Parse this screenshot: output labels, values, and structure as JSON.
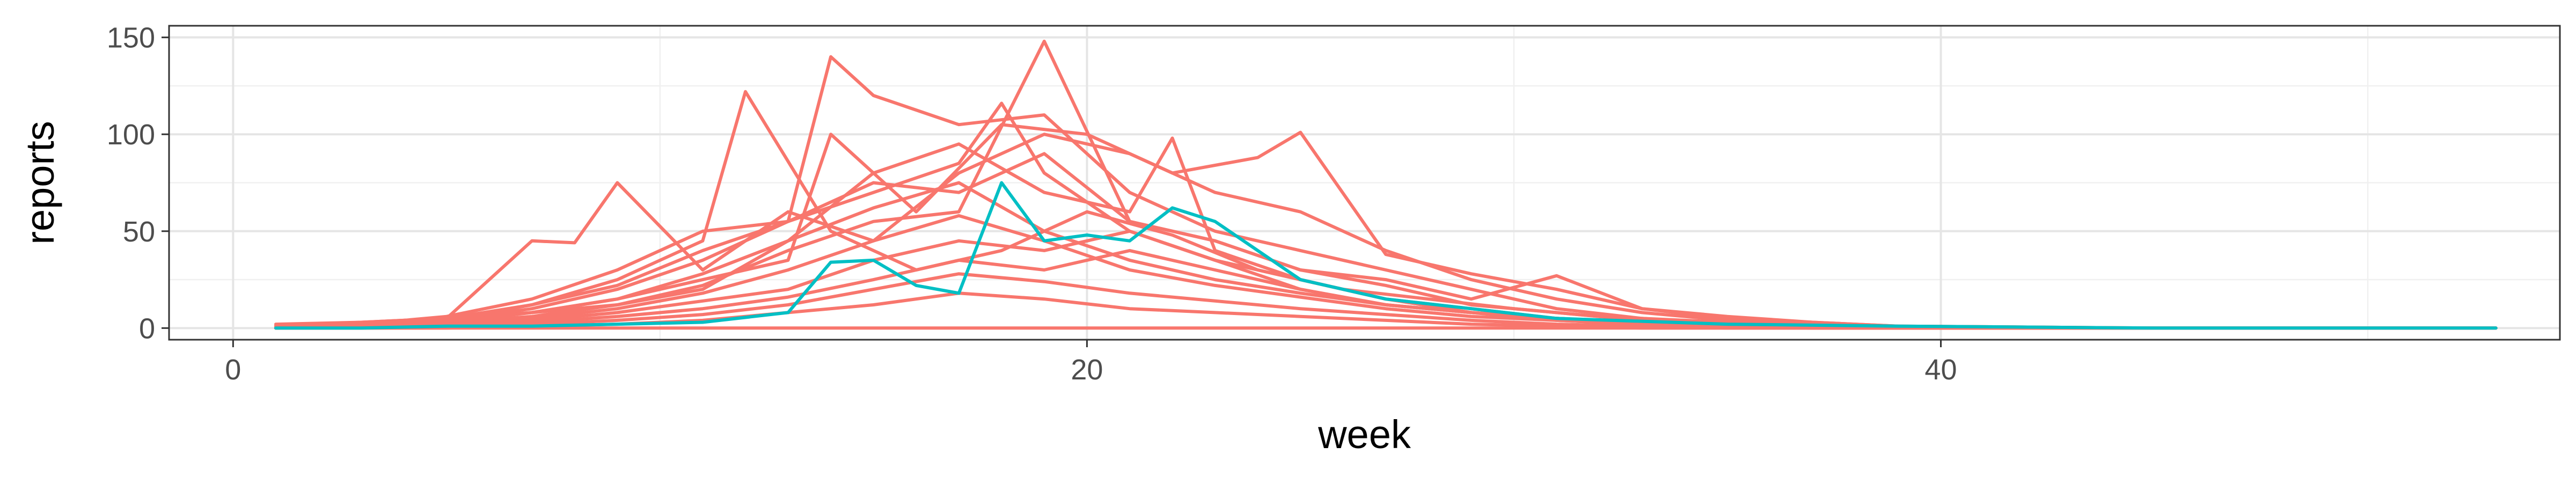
{
  "chart_data": {
    "type": "line",
    "title": "",
    "xlabel": "week",
    "ylabel": "reports",
    "xlim": [
      -1.5,
      54.5
    ],
    "ylim": [
      -6,
      156
    ],
    "x_ticks": [
      0,
      20,
      40
    ],
    "y_ticks": [
      0,
      50,
      100,
      150
    ],
    "x_minor_ticks": [
      10,
      30,
      50
    ],
    "y_minor_ticks": [
      25,
      75,
      125
    ],
    "grid": true,
    "legend": "none",
    "colors": {
      "salmon": "#F8766D",
      "teal": "#00BFC4"
    },
    "series": [
      {
        "color": "#F8766D",
        "x": [
          1,
          3,
          5,
          7,
          9,
          11,
          13,
          15,
          17,
          19,
          21,
          23,
          25,
          27,
          29,
          31,
          33,
          35,
          37,
          39,
          41,
          45,
          50,
          53
        ],
        "y": [
          2,
          3,
          5,
          8,
          12,
          22,
          40,
          55,
          60,
          148,
          55,
          45,
          30,
          22,
          12,
          8,
          4,
          2,
          1,
          0,
          0,
          0,
          0,
          0
        ]
      },
      {
        "color": "#F8766D",
        "x": [
          1,
          3,
          5,
          7,
          9,
          11,
          12,
          14,
          16,
          18,
          20,
          22,
          24,
          26,
          28,
          30,
          32,
          34,
          36,
          38,
          40,
          45,
          50,
          53
        ],
        "y": [
          1,
          2,
          4,
          12,
          25,
          45,
          122,
          50,
          30,
          40,
          60,
          48,
          30,
          20,
          15,
          10,
          6,
          4,
          2,
          1,
          0,
          0,
          0,
          0
        ]
      },
      {
        "color": "#F8766D",
        "x": [
          1,
          3,
          5,
          7,
          9,
          11,
          13,
          14,
          15,
          17,
          19,
          21,
          23,
          25,
          27,
          29,
          31,
          33,
          35,
          37,
          39,
          45,
          50,
          53
        ],
        "y": [
          1,
          2,
          6,
          15,
          30,
          50,
          55,
          140,
          120,
          105,
          110,
          70,
          50,
          40,
          30,
          20,
          10,
          5,
          2,
          1,
          0,
          0,
          0,
          0
        ]
      },
      {
        "color": "#F8766D",
        "x": [
          1,
          3,
          5,
          7,
          8,
          9,
          11,
          13,
          15,
          17,
          19,
          21,
          23,
          25,
          27,
          29,
          31,
          33,
          35,
          37,
          39,
          45,
          50,
          53
        ],
        "y": [
          1,
          3,
          5,
          45,
          44,
          75,
          30,
          60,
          45,
          80,
          100,
          90,
          70,
          60,
          40,
          25,
          15,
          8,
          4,
          2,
          1,
          0,
          0,
          0
        ]
      },
      {
        "color": "#F8766D",
        "x": [
          1,
          3,
          5,
          7,
          9,
          11,
          13,
          14,
          16,
          18,
          20,
          22,
          24,
          25,
          27,
          29,
          31,
          33,
          35,
          37,
          39,
          45,
          50,
          53
        ],
        "y": [
          1,
          2,
          4,
          8,
          15,
          25,
          35,
          100,
          60,
          105,
          100,
          80,
          88,
          101,
          38,
          28,
          20,
          10,
          6,
          3,
          1,
          0,
          0,
          0
        ]
      },
      {
        "color": "#F8766D",
        "x": [
          1,
          3,
          5,
          7,
          9,
          11,
          13,
          15,
          17,
          19,
          21,
          22,
          23,
          25,
          27,
          29,
          31,
          33,
          35,
          37,
          39,
          45,
          50,
          53
        ],
        "y": [
          0,
          1,
          3,
          6,
          12,
          20,
          45,
          80,
          95,
          70,
          60,
          98,
          40,
          25,
          15,
          10,
          5,
          3,
          2,
          1,
          0,
          0,
          0,
          0
        ]
      },
      {
        "color": "#F8766D",
        "x": [
          1,
          3,
          5,
          7,
          9,
          11,
          13,
          15,
          17,
          18,
          19,
          21,
          23,
          25,
          27,
          29,
          31,
          33,
          35,
          37,
          39,
          45,
          50,
          53
        ],
        "y": [
          0,
          2,
          4,
          10,
          20,
          35,
          55,
          70,
          85,
          116,
          80,
          50,
          35,
          20,
          12,
          8,
          5,
          3,
          1,
          0,
          0,
          0,
          0,
          0
        ]
      },
      {
        "color": "#F8766D",
        "x": [
          1,
          3,
          5,
          7,
          9,
          11,
          13,
          15,
          17,
          19,
          21,
          23,
          25,
          27,
          29,
          31,
          33,
          35,
          37,
          39,
          41,
          45,
          50,
          53
        ],
        "y": [
          1,
          2,
          5,
          12,
          22,
          40,
          55,
          75,
          70,
          90,
          55,
          45,
          30,
          25,
          15,
          27,
          10,
          5,
          3,
          1,
          0,
          0,
          0,
          0
        ]
      },
      {
        "color": "#F8766D",
        "x": [
          1,
          3,
          5,
          7,
          9,
          11,
          13,
          15,
          17,
          19,
          21,
          23,
          25,
          27,
          29,
          31,
          33,
          35,
          37,
          39,
          41,
          45,
          50,
          53
        ],
        "y": [
          0,
          1,
          3,
          8,
          15,
          28,
          45,
          62,
          75,
          50,
          35,
          25,
          18,
          12,
          8,
          5,
          3,
          2,
          1,
          0,
          0,
          0,
          0,
          0
        ]
      },
      {
        "color": "#F8766D",
        "x": [
          1,
          3,
          5,
          7,
          9,
          11,
          13,
          15,
          17,
          19,
          21,
          23,
          25,
          27,
          29,
          31,
          33,
          35,
          37,
          39,
          41,
          45,
          50,
          53
        ],
        "y": [
          0,
          1,
          2,
          5,
          10,
          18,
          30,
          45,
          58,
          45,
          30,
          22,
          16,
          10,
          6,
          4,
          2,
          1,
          0,
          0,
          0,
          0,
          0,
          0
        ]
      },
      {
        "color": "#F8766D",
        "x": [
          1,
          3,
          5,
          7,
          9,
          11,
          13,
          15,
          17,
          19,
          21,
          23,
          25,
          27,
          29,
          31,
          33,
          35,
          37,
          39,
          41,
          45,
          50,
          53
        ],
        "y": [
          0,
          1,
          2,
          4,
          8,
          14,
          20,
          35,
          45,
          40,
          50,
          35,
          25,
          15,
          8,
          5,
          3,
          1,
          0,
          0,
          0,
          0,
          0,
          0
        ]
      },
      {
        "color": "#F8766D",
        "x": [
          1,
          3,
          5,
          7,
          9,
          11,
          13,
          15,
          17,
          19,
          21,
          23,
          25,
          27,
          29,
          31,
          33,
          35,
          37,
          39,
          41,
          45,
          50,
          53
        ],
        "y": [
          0,
          1,
          2,
          3,
          6,
          10,
          16,
          25,
          35,
          30,
          40,
          30,
          20,
          12,
          8,
          4,
          2,
          1,
          0,
          0,
          0,
          0,
          0,
          0
        ]
      },
      {
        "color": "#F8766D",
        "x": [
          1,
          3,
          5,
          7,
          9,
          11,
          13,
          15,
          17,
          19,
          21,
          23,
          25,
          27,
          29,
          31,
          33,
          35,
          37,
          39,
          41,
          45,
          50,
          53
        ],
        "y": [
          0,
          0,
          1,
          2,
          4,
          7,
          12,
          20,
          28,
          24,
          18,
          14,
          10,
          7,
          4,
          2,
          1,
          0,
          0,
          0,
          0,
          0,
          0,
          0
        ]
      },
      {
        "color": "#F8766D",
        "x": [
          1,
          3,
          5,
          7,
          9,
          11,
          13,
          15,
          17,
          19,
          21,
          23,
          25,
          27,
          29,
          31,
          33,
          35,
          37,
          39,
          41,
          45,
          50,
          53
        ],
        "y": [
          0,
          0,
          0,
          1,
          2,
          4,
          8,
          12,
          18,
          15,
          10,
          8,
          6,
          4,
          2,
          1,
          0,
          0,
          0,
          0,
          0,
          0,
          0,
          0
        ]
      },
      {
        "color": "#F8766D",
        "x": [
          1,
          3,
          5,
          7,
          9,
          11,
          13,
          15,
          17,
          19,
          21,
          23,
          25,
          27,
          29,
          31,
          33,
          35,
          37,
          39,
          41,
          45,
          50,
          53
        ],
        "y": [
          0,
          0,
          0,
          0,
          0,
          0,
          0,
          0,
          0,
          0,
          0,
          0,
          0,
          0,
          0,
          0,
          0,
          0,
          0,
          0,
          0,
          0,
          0,
          0
        ]
      },
      {
        "color": "#00BFC4",
        "x": [
          1,
          3,
          5,
          7,
          9,
          11,
          13,
          14,
          15,
          16,
          17,
          18,
          19,
          20,
          21,
          22,
          23,
          24,
          25,
          27,
          29,
          31,
          35,
          39,
          45,
          53
        ],
        "y": [
          0,
          0,
          1,
          1,
          2,
          3,
          8,
          34,
          35,
          22,
          18,
          75,
          45,
          48,
          45,
          62,
          55,
          40,
          25,
          15,
          10,
          5,
          2,
          1,
          0,
          0
        ]
      }
    ]
  }
}
